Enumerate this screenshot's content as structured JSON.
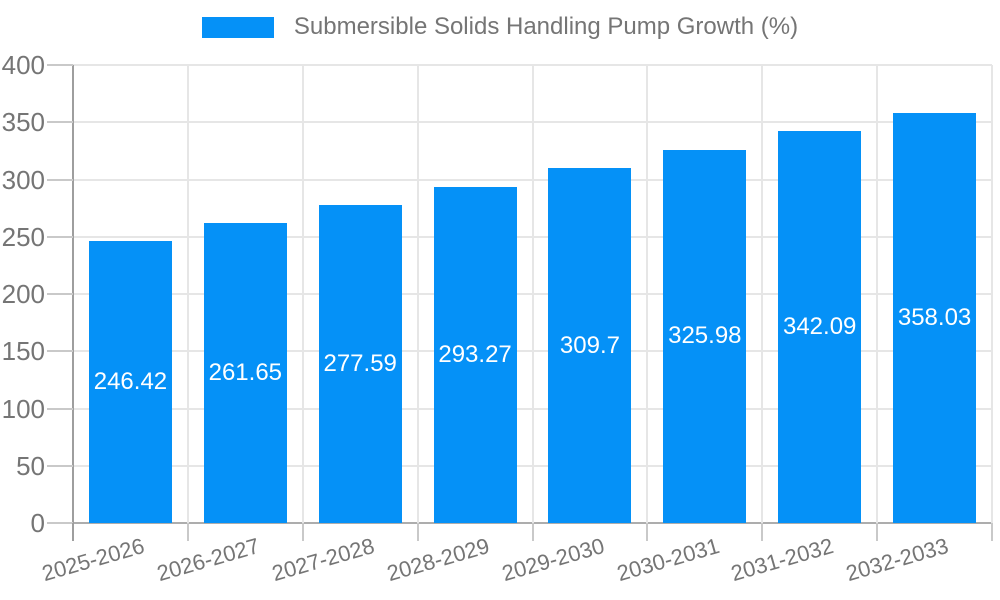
{
  "legend": {
    "label": "Submersible Solids Handling Pump Growth (%)",
    "swatch_color": "#0591f7"
  },
  "chart_data": {
    "type": "bar",
    "title": "Submersible Solids Handling Pump Growth (%)",
    "categories": [
      "2025-2026",
      "2026-2027",
      "2027-2028",
      "2028-2029",
      "2029-2030",
      "2030-2031",
      "2031-2032",
      "2032-2033"
    ],
    "series": [
      {
        "name": "Submersible Solids Handling Pump Growth (%)",
        "values": [
          246.42,
          261.65,
          277.59,
          293.27,
          309.7,
          325.98,
          342.09,
          358.03
        ]
      }
    ],
    "value_labels": [
      "246.42",
      "261.65",
      "277.59",
      "293.27",
      "309.7",
      "325.98",
      "342.09",
      "358.03"
    ],
    "xlabel": "",
    "ylabel": "",
    "ylim": [
      0,
      400
    ],
    "ytick_step": 50,
    "grid": true,
    "legend_position": "top",
    "bar_color": "#0591f7",
    "colors": {
      "text": "#757575",
      "grid": "#e6e6e6",
      "axis": "#9e9e9e",
      "tick": "#c9c9c9",
      "value_label": "#ffffff",
      "background": "#ffffff"
    }
  }
}
